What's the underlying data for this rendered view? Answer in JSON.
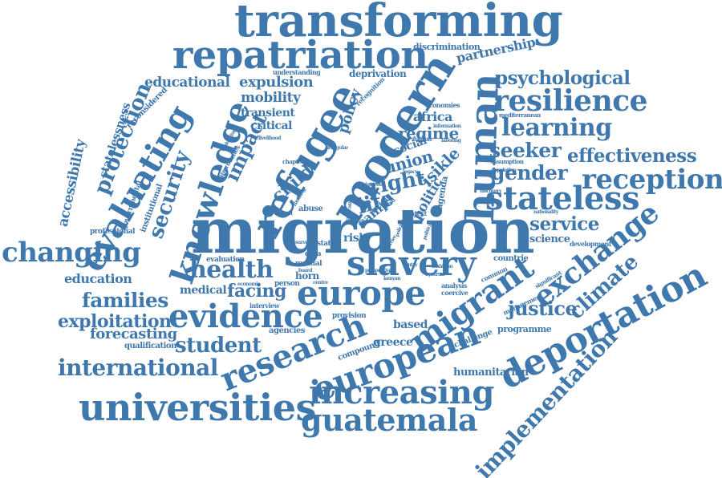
{
  "colors": {
    "word": "#3f78ad",
    "background": "#ffffff"
  },
  "cloud": {
    "words": [
      "migration",
      "transforming",
      "repatriation",
      "modern",
      "refugee",
      "human",
      "knowledge",
      "evaluating",
      "europe",
      "slavery",
      "evidence",
      "research",
      "european",
      "migrant",
      "deportation",
      "exchange",
      "universities",
      "increasing",
      "guatemala",
      "stateless",
      "resilience",
      "reception",
      "learning",
      "psychological",
      "gender",
      "seeker",
      "effectiveness",
      "service",
      "climate",
      "justice",
      "implementation",
      "changing",
      "health",
      "families",
      "exploitation",
      "international",
      "student",
      "forecasting",
      "education",
      "security",
      "protection",
      "accessibility",
      "statelessness",
      "facing",
      "medical",
      "right",
      "life",
      "union",
      "regime",
      "politic",
      "policy",
      "impact",
      "critical",
      "transient",
      "mobility",
      "expulsion",
      "educational",
      "partnership",
      "deprivation",
      "discrimination",
      "africa",
      "greece",
      "based",
      "humanitarian",
      "programme",
      "science",
      "development",
      "countrie",
      "management",
      "significant",
      "challenge",
      "compound",
      "qualification",
      "agencies",
      "interview",
      "horn",
      "mutual",
      "abuse",
      "evaluation",
      "professional",
      "reconsidered",
      "institutional",
      "governmental",
      "person",
      "economic",
      "understanding",
      "recognition",
      "economies",
      "mediterranean",
      "information",
      "laboring",
      "dateline",
      "livelihood",
      "irregular",
      "chapter",
      "approaches",
      "underlying",
      "child",
      "camp",
      "finding",
      "legacy",
      "isikle",
      "article",
      "social",
      "risk",
      "context",
      "crisis",
      "cerd",
      "political",
      "policies",
      "nationality",
      "population",
      "assumption",
      "discovery",
      "agenda",
      "analysis",
      "coercive",
      "common",
      "state",
      "arendt",
      "survey",
      "data",
      "system",
      "ambition",
      "entry",
      "board",
      "provision",
      "interest",
      "ratification",
      "centre",
      "kenyan",
      "perspective",
      "barrier"
    ]
  }
}
